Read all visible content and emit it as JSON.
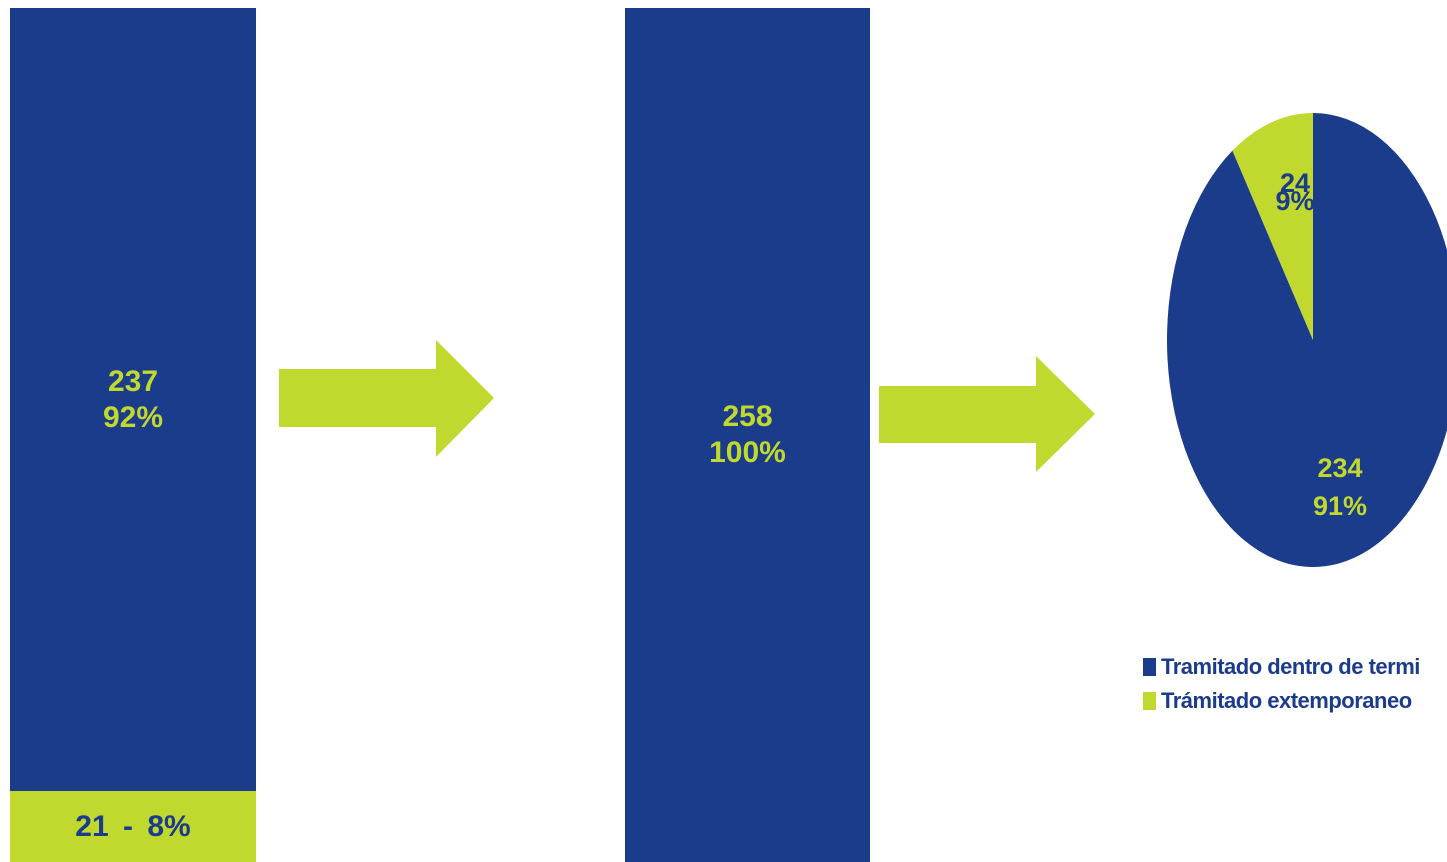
{
  "chart_data": [
    {
      "type": "bar",
      "stacked": true,
      "segments": [
        {
          "value": 237,
          "percent": "92%",
          "label_value": "237",
          "label_percent": "92%",
          "color": "#1B3B8B"
        },
        {
          "value": 21,
          "percent": "8%",
          "label": "21 - 8%",
          "color": "#C1D82F"
        }
      ]
    },
    {
      "type": "bar",
      "segments": [
        {
          "value": 258,
          "percent": "100%",
          "label_value": "258",
          "label_percent": "100%",
          "color": "#1B3B8B"
        }
      ]
    },
    {
      "type": "pie",
      "slices": [
        {
          "name": "Tramitado dentro de termi",
          "value": 234,
          "label_value": "234",
          "label_percent": "91%",
          "color": "#1B3B8B"
        },
        {
          "name": "Trámitado extemporaneo",
          "value": 24,
          "label_value": "24",
          "label_percent": "9%",
          "color": "#C1D82F"
        }
      ],
      "legend_position": "bottom"
    }
  ],
  "colors": {
    "primary": "#1B3B8B",
    "accent": "#C1D82F"
  },
  "decorations": [
    "arrow-right",
    "arrow-right"
  ]
}
